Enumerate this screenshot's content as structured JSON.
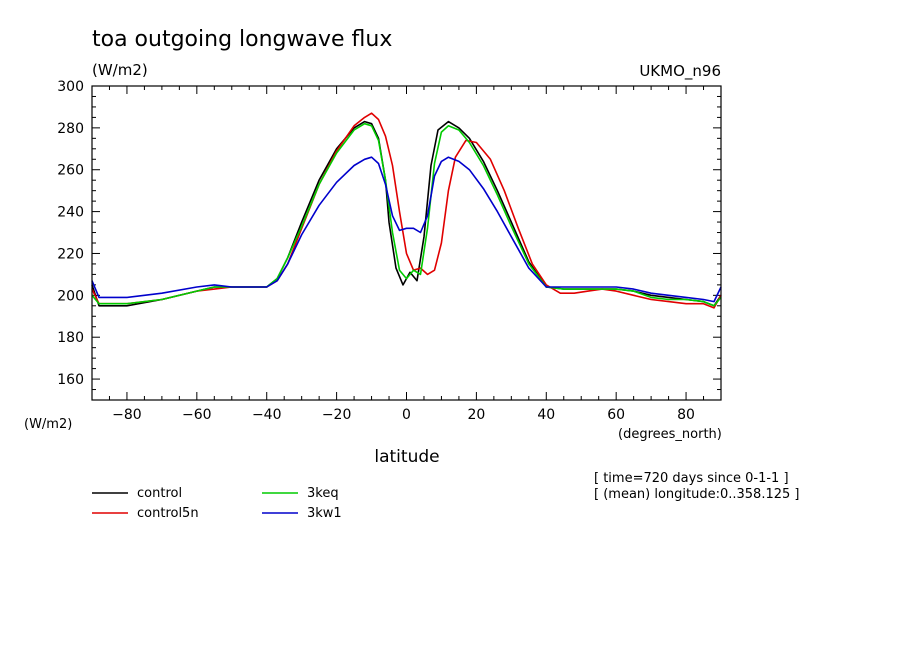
{
  "chart_data": {
    "type": "line",
    "title": "toa outgoing longwave flux",
    "units": "(W/m2)",
    "model_label": "UKMO_n96",
    "xlabel": "latitude",
    "xunits": "(degrees_north)",
    "yunits_axis": "(W/m2)",
    "xlim": [
      -90,
      90
    ],
    "ylim": [
      150,
      300
    ],
    "xticks": [
      -80,
      -60,
      -40,
      -20,
      0,
      20,
      40,
      60,
      80
    ],
    "xtick_labels": [
      "−80",
      "−60",
      "−40",
      "−20",
      "0",
      "20",
      "40",
      "60",
      "80"
    ],
    "yticks": [
      160,
      180,
      200,
      220,
      240,
      260,
      280,
      300
    ],
    "info_lines": [
      "[ time=720 days since 0-1-1 ]",
      "[ (mean) longitude:0..358.125 ]"
    ],
    "series": [
      {
        "name": "control",
        "color": "#000000",
        "x": [
          -90,
          -88,
          -85,
          -80,
          -70,
          -60,
          -55,
          -50,
          -45,
          -40,
          -37,
          -34,
          -30,
          -25,
          -20,
          -15,
          -12,
          -10,
          -8,
          -6,
          -5,
          -3,
          -1,
          1,
          3,
          5,
          7,
          9,
          12,
          15,
          18,
          22,
          26,
          30,
          35,
          40,
          45,
          50,
          55,
          60,
          65,
          70,
          75,
          80,
          85,
          88,
          90
        ],
        "values": [
          205,
          195,
          195,
          195,
          198,
          202,
          204,
          204,
          204,
          204,
          208,
          218,
          235,
          255,
          270,
          280,
          283,
          282,
          275,
          255,
          235,
          213,
          205,
          211,
          207,
          228,
          262,
          279,
          283,
          280,
          275,
          264,
          250,
          235,
          216,
          204,
          203,
          203,
          203,
          203,
          202,
          200,
          199,
          198,
          197,
          195,
          200
        ]
      },
      {
        "name": "control5n",
        "color": "#e00000",
        "x": [
          -90,
          -88,
          -85,
          -80,
          -70,
          -60,
          -55,
          -50,
          -45,
          -40,
          -37,
          -34,
          -30,
          -25,
          -20,
          -15,
          -12,
          -10,
          -8,
          -6,
          -4,
          -2,
          0,
          2,
          4,
          6,
          8,
          10,
          12,
          14,
          17,
          20,
          24,
          28,
          32,
          36,
          40,
          44,
          48,
          52,
          56,
          60,
          65,
          70,
          75,
          80,
          85,
          88,
          90
        ],
        "values": [
          203,
          196,
          196,
          196,
          198,
          202,
          203,
          204,
          204,
          204,
          207,
          215,
          232,
          253,
          269,
          281,
          285,
          287,
          284,
          276,
          262,
          240,
          220,
          212,
          213,
          210,
          212,
          225,
          250,
          266,
          274,
          273,
          265,
          250,
          232,
          215,
          205,
          201,
          201,
          202,
          203,
          202,
          200,
          198,
          197,
          196,
          196,
          194,
          200
        ]
      },
      {
        "name": "3keq",
        "color": "#00cc00",
        "x": [
          -90,
          -88,
          -85,
          -80,
          -70,
          -60,
          -55,
          -50,
          -45,
          -40,
          -37,
          -34,
          -30,
          -25,
          -20,
          -15,
          -12,
          -10,
          -8,
          -6,
          -4,
          -2,
          0,
          2,
          4,
          6,
          8,
          10,
          12,
          15,
          18,
          22,
          26,
          30,
          35,
          40,
          45,
          50,
          55,
          60,
          65,
          70,
          75,
          80,
          85,
          88,
          90
        ],
        "values": [
          200,
          196,
          196,
          196,
          198,
          202,
          204,
          204,
          204,
          204,
          208,
          218,
          233,
          253,
          268,
          279,
          282,
          281,
          274,
          255,
          230,
          212,
          208,
          212,
          210,
          232,
          263,
          278,
          281,
          279,
          273,
          262,
          248,
          233,
          215,
          204,
          203,
          203,
          203,
          203,
          202,
          199,
          198,
          198,
          197,
          195,
          199
        ]
      },
      {
        "name": "3kw1",
        "color": "#0000cc",
        "x": [
          -90,
          -88,
          -85,
          -80,
          -70,
          -60,
          -55,
          -50,
          -45,
          -40,
          -37,
          -34,
          -30,
          -25,
          -20,
          -15,
          -12,
          -10,
          -8,
          -6,
          -4,
          -2,
          0,
          2,
          4,
          6,
          8,
          10,
          12,
          15,
          18,
          22,
          26,
          30,
          35,
          40,
          45,
          50,
          55,
          60,
          65,
          70,
          75,
          80,
          85,
          88,
          90
        ],
        "values": [
          207,
          199,
          199,
          199,
          201,
          204,
          205,
          204,
          204,
          204,
          207,
          215,
          229,
          243,
          254,
          262,
          265,
          266,
          263,
          253,
          238,
          231,
          232,
          232,
          230,
          238,
          257,
          264,
          266,
          264,
          260,
          251,
          240,
          228,
          213,
          204,
          204,
          204,
          204,
          204,
          203,
          201,
          200,
          199,
          198,
          197,
          204
        ]
      }
    ]
  }
}
